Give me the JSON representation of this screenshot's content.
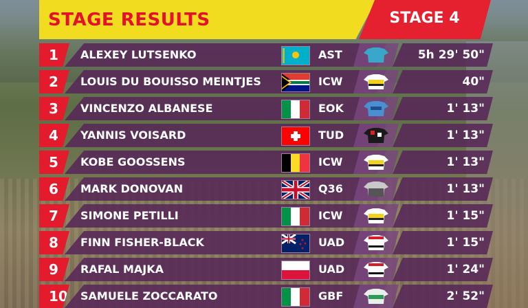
{
  "header": {
    "title": "STAGE RESULTS",
    "stage": "STAGE 4"
  },
  "colors": {
    "header_yellow": "#f2dc1f",
    "accent_red": "#e31b2c",
    "row_purple": "#582858"
  },
  "rows": [
    {
      "pos": "1",
      "name": "ALEXEY LUTSENKO",
      "flag": "flag-kazakhstan-icon",
      "team": "AST",
      "jersey": "jersey-astana-icon",
      "time": "5h 29' 50\""
    },
    {
      "pos": "2",
      "name": "LOUIS DU BOUISSO MEINTJES",
      "flag": "flag-south-africa-icon",
      "team": "ICW",
      "jersey": "jersey-intermarche-icon",
      "time": "40\""
    },
    {
      "pos": "3",
      "name": "VINCENZO ALBANESE",
      "flag": "flag-italy-icon",
      "team": "EOK",
      "jersey": "jersey-eolo-icon",
      "time": "1' 13\""
    },
    {
      "pos": "4",
      "name": "YANNIS VOISARD",
      "flag": "flag-switzerland-icon",
      "team": "TUD",
      "jersey": "jersey-tudor-icon",
      "time": "1' 13\""
    },
    {
      "pos": "5",
      "name": "KOBE GOOSSENS",
      "flag": "flag-belgium-icon",
      "team": "ICW",
      "jersey": "jersey-intermarche-icon",
      "time": "1' 13\""
    },
    {
      "pos": "6",
      "name": "MARK DONOVAN",
      "flag": "flag-uk-icon",
      "team": "Q36",
      "jersey": "jersey-q36-icon",
      "time": "1' 13\""
    },
    {
      "pos": "7",
      "name": "SIMONE PETILLI",
      "flag": "flag-italy-icon",
      "team": "ICW",
      "jersey": "jersey-intermarche-icon",
      "time": "1' 15\""
    },
    {
      "pos": "8",
      "name": "FINN FISHER-BLACK",
      "flag": "flag-new-zealand-icon",
      "team": "UAD",
      "jersey": "jersey-uae-icon",
      "time": "1' 15\""
    },
    {
      "pos": "9",
      "name": "RAFAL MAJKA",
      "flag": "flag-poland-icon",
      "team": "UAD",
      "jersey": "jersey-uae-icon",
      "time": "1' 24\""
    },
    {
      "pos": "10",
      "name": "SAMUELE ZOCCARATO",
      "flag": "flag-italy-icon",
      "team": "GBF",
      "jersey": "jersey-green-project-icon",
      "time": "2' 52\""
    }
  ]
}
